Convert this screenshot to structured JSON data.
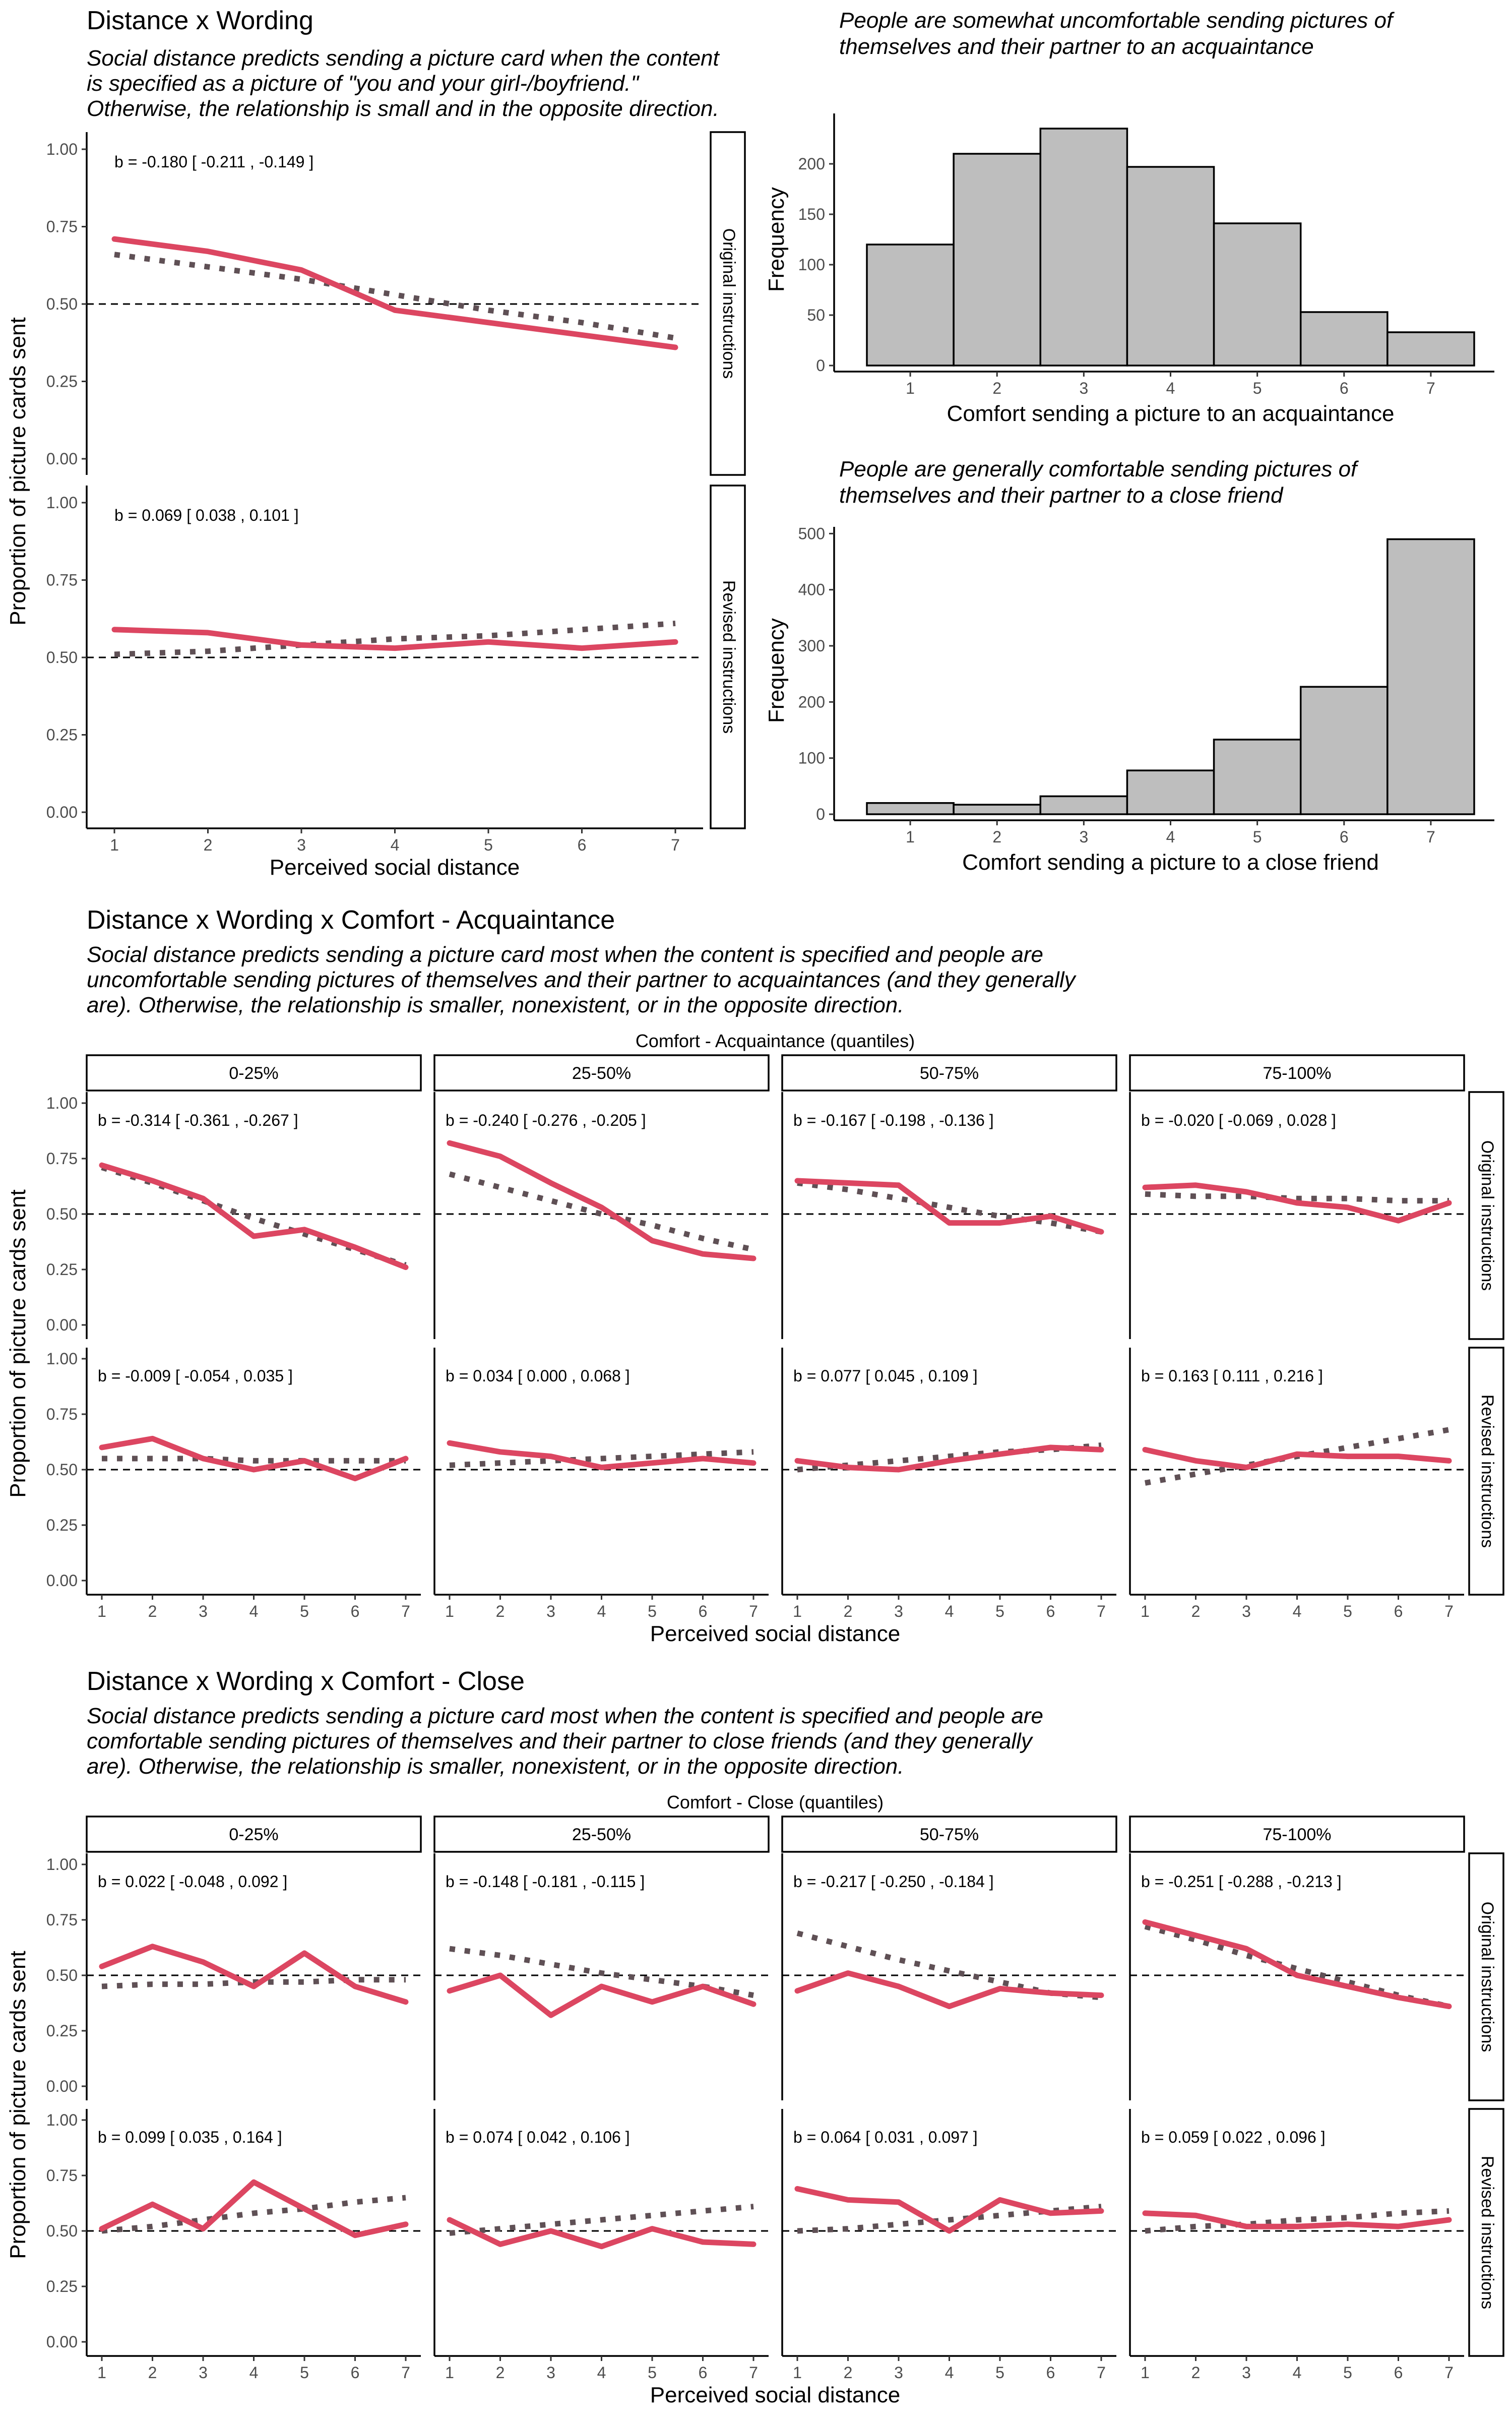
{
  "figure": {
    "line_color": "#dc4661",
    "dot_color": "#5f5055",
    "bar_fill": "#bebebe",
    "ref_line": 0.5
  },
  "chart_data": [
    {
      "id": "wording",
      "type": "line",
      "title": "Distance x Wording",
      "subtitle": [
        "Social distance predicts sending a picture card when the content",
        "is specified as a picture of \"you and your girl-/boyfriend.\"",
        "Otherwise, the relationship is small and in the opposite direction."
      ],
      "xlabel": "Perceived social distance",
      "ylabel": "Proportion of picture cards sent",
      "x": [
        1,
        2,
        3,
        4,
        5,
        6,
        7
      ],
      "yticks": [
        "0.00",
        "0.25",
        "0.50",
        "0.75",
        "1.00"
      ],
      "ylim": [
        0,
        1
      ],
      "rows": [
        {
          "strip": "Original instructions",
          "panels": [
            {
              "annot": "b = -0.180  [ -0.211 ,  -0.149 ]",
              "observed": [
                0.71,
                0.67,
                0.61,
                0.48,
                0.44,
                0.4,
                0.36
              ],
              "fitted": [
                0.66,
                0.62,
                0.58,
                0.53,
                0.48,
                0.44,
                0.39
              ]
            }
          ]
        },
        {
          "strip": "Revised instructions",
          "panels": [
            {
              "annot": "b = 0.069  [ 0.038 ,  0.101 ]",
              "observed": [
                0.59,
                0.58,
                0.54,
                0.53,
                0.55,
                0.53,
                0.55
              ],
              "fitted": [
                0.51,
                0.52,
                0.54,
                0.56,
                0.57,
                0.59,
                0.61
              ]
            }
          ]
        }
      ]
    },
    {
      "id": "hist-acq",
      "type": "bar",
      "title": [
        "People are somewhat uncomfortable sending pictures of",
        "themselves and their partner to an acquaintance"
      ],
      "xlabel": "Comfort sending a picture to an acquaintance",
      "ylabel": "Frequency",
      "categories": [
        "1",
        "2",
        "3",
        "4",
        "5",
        "6",
        "7"
      ],
      "values": [
        120,
        210,
        235,
        197,
        141,
        53,
        33
      ],
      "yticks": [
        0,
        50,
        100,
        150,
        200
      ],
      "ylim": [
        0,
        250
      ]
    },
    {
      "id": "hist-close",
      "type": "bar",
      "title": [
        "People are generally comfortable sending pictures of",
        "themselves and their partner to a close friend"
      ],
      "xlabel": "Comfort sending a picture to a close friend",
      "ylabel": "Frequency",
      "categories": [
        "1",
        "2",
        "3",
        "4",
        "5",
        "6",
        "7"
      ],
      "values": [
        20,
        17,
        32,
        78,
        133,
        227,
        490
      ],
      "yticks": [
        0,
        100,
        200,
        300,
        400,
        500
      ],
      "ylim": [
        0,
        512
      ]
    },
    {
      "id": "comfort-acq",
      "type": "line",
      "title": "Distance x Wording x Comfort - Acquaintance",
      "subtitle": [
        "Social distance predicts sending a picture card most when the content is specified and people are",
        "uncomfortable sending pictures of themselves and their partner to acquaintances (and they generally",
        "are). Otherwise, the relationship is smaller, nonexistent, or in the opposite direction."
      ],
      "facet_title": "Comfort - Acquaintance (quantiles)",
      "columns": [
        "0-25%",
        "25-50%",
        "50-75%",
        "75-100%"
      ],
      "xlabel": "Perceived social distance",
      "ylabel": "Proportion of picture cards sent",
      "x": [
        1,
        2,
        3,
        4,
        5,
        6,
        7
      ],
      "yticks": [
        "0.00",
        "0.25",
        "0.50",
        "0.75",
        "1.00"
      ],
      "ylim": [
        0,
        1
      ],
      "rows": [
        {
          "strip": "Original instructions",
          "panels": [
            {
              "annot": "b = -0.314  [ -0.361 ,  -0.267 ]",
              "observed": [
                0.72,
                0.65,
                0.57,
                0.4,
                0.43,
                0.35,
                0.26
              ],
              "fitted": [
                0.71,
                0.64,
                0.56,
                0.48,
                0.41,
                0.34,
                0.27
              ]
            },
            {
              "annot": "b = -0.240  [ -0.276 ,  -0.205 ]",
              "observed": [
                0.82,
                0.76,
                0.64,
                0.53,
                0.38,
                0.32,
                0.3
              ],
              "fitted": [
                0.68,
                0.62,
                0.56,
                0.5,
                0.45,
                0.39,
                0.34
              ]
            },
            {
              "annot": "b = -0.167  [ -0.198 ,  -0.136 ]",
              "observed": [
                0.65,
                0.64,
                0.63,
                0.46,
                0.46,
                0.49,
                0.42
              ],
              "fitted": [
                0.64,
                0.61,
                0.57,
                0.53,
                0.49,
                0.46,
                0.42
              ]
            },
            {
              "annot": "b = -0.020  [ -0.069 ,   0.028 ]",
              "observed": [
                0.62,
                0.63,
                0.6,
                0.55,
                0.53,
                0.47,
                0.55
              ],
              "fitted": [
                0.59,
                0.58,
                0.58,
                0.57,
                0.57,
                0.56,
                0.56
              ]
            }
          ]
        },
        {
          "strip": "Revised instructions",
          "panels": [
            {
              "annot": "b = -0.009  [ -0.054 ,  0.035 ]",
              "observed": [
                0.6,
                0.64,
                0.55,
                0.5,
                0.54,
                0.46,
                0.55
              ],
              "fitted": [
                0.55,
                0.55,
                0.55,
                0.54,
                0.54,
                0.54,
                0.54
              ]
            },
            {
              "annot": "b =  0.034  [  0.000 ,  0.068 ]",
              "observed": [
                0.62,
                0.58,
                0.56,
                0.51,
                0.53,
                0.55,
                0.53
              ],
              "fitted": [
                0.52,
                0.53,
                0.54,
                0.55,
                0.56,
                0.57,
                0.58
              ]
            },
            {
              "annot": "b =  0.077  [  0.045 ,  0.109 ]",
              "observed": [
                0.54,
                0.51,
                0.5,
                0.54,
                0.57,
                0.6,
                0.59
              ],
              "fitted": [
                0.5,
                0.52,
                0.54,
                0.56,
                0.58,
                0.59,
                0.61
              ]
            },
            {
              "annot": "b =  0.163  [  0.111 ,  0.216 ]",
              "observed": [
                0.59,
                0.54,
                0.51,
                0.57,
                0.56,
                0.56,
                0.54
              ],
              "fitted": [
                0.44,
                0.48,
                0.52,
                0.56,
                0.6,
                0.64,
                0.68
              ]
            }
          ]
        }
      ]
    },
    {
      "id": "comfort-close",
      "type": "line",
      "title": "Distance x Wording x Comfort - Close",
      "subtitle": [
        "Social distance predicts sending a picture card most when the content is specified and people are",
        "comfortable sending pictures of themselves and their partner to close friends (and they generally",
        "are). Otherwise, the relationship is smaller, nonexistent, or in the opposite direction."
      ],
      "facet_title": "Comfort - Close (quantiles)",
      "columns": [
        "0-25%",
        "25-50%",
        "50-75%",
        "75-100%"
      ],
      "xlabel": "Perceived social distance",
      "ylabel": "Proportion of picture cards sent",
      "x": [
        1,
        2,
        3,
        4,
        5,
        6,
        7
      ],
      "yticks": [
        "0.00",
        "0.25",
        "0.50",
        "0.75",
        "1.00"
      ],
      "ylim": [
        0,
        1
      ],
      "rows": [
        {
          "strip": "Original instructions",
          "panels": [
            {
              "annot": "b =  0.022  [ -0.048 ,   0.092 ]",
              "observed": [
                0.54,
                0.63,
                0.56,
                0.45,
                0.6,
                0.45,
                0.38
              ],
              "fitted": [
                0.45,
                0.46,
                0.46,
                0.47,
                0.47,
                0.48,
                0.48
              ]
            },
            {
              "annot": "b = -0.148  [ -0.181 ,  -0.115 ]",
              "observed": [
                0.43,
                0.5,
                0.32,
                0.45,
                0.38,
                0.45,
                0.37
              ],
              "fitted": [
                0.62,
                0.59,
                0.55,
                0.51,
                0.48,
                0.45,
                0.41
              ]
            },
            {
              "annot": "b = -0.217  [ -0.250 ,  -0.184 ]",
              "observed": [
                0.43,
                0.51,
                0.45,
                0.36,
                0.44,
                0.42,
                0.41
              ],
              "fitted": [
                0.69,
                0.63,
                0.57,
                0.52,
                0.47,
                0.42,
                0.4
              ]
            },
            {
              "annot": "b = -0.251  [ -0.288 ,  -0.213 ]",
              "observed": [
                0.74,
                0.68,
                0.62,
                0.5,
                0.45,
                0.4,
                0.36
              ],
              "fitted": [
                0.72,
                0.66,
                0.59,
                0.53,
                0.47,
                0.41,
                0.36
              ]
            }
          ]
        },
        {
          "strip": "Revised instructions",
          "panels": [
            {
              "annot": "b = 0.099  [ 0.035 ,  0.164 ]",
              "observed": [
                0.51,
                0.62,
                0.51,
                0.72,
                0.6,
                0.48,
                0.53
              ],
              "fitted": [
                0.5,
                0.52,
                0.55,
                0.58,
                0.6,
                0.63,
                0.65
              ]
            },
            {
              "annot": "b = 0.074  [ 0.042 ,  0.106 ]",
              "observed": [
                0.55,
                0.44,
                0.5,
                0.43,
                0.51,
                0.45,
                0.44
              ],
              "fitted": [
                0.49,
                0.51,
                0.53,
                0.55,
                0.57,
                0.59,
                0.61
              ]
            },
            {
              "annot": "b = 0.064  [ 0.031 ,  0.097 ]",
              "observed": [
                0.69,
                0.64,
                0.63,
                0.5,
                0.64,
                0.58,
                0.59
              ],
              "fitted": [
                0.5,
                0.51,
                0.53,
                0.55,
                0.57,
                0.59,
                0.61
              ]
            },
            {
              "annot": "b = 0.059  [ 0.022 ,  0.096 ]",
              "observed": [
                0.58,
                0.57,
                0.52,
                0.52,
                0.53,
                0.52,
                0.55
              ],
              "fitted": [
                0.5,
                0.52,
                0.53,
                0.55,
                0.56,
                0.58,
                0.59
              ]
            }
          ]
        }
      ]
    }
  ]
}
